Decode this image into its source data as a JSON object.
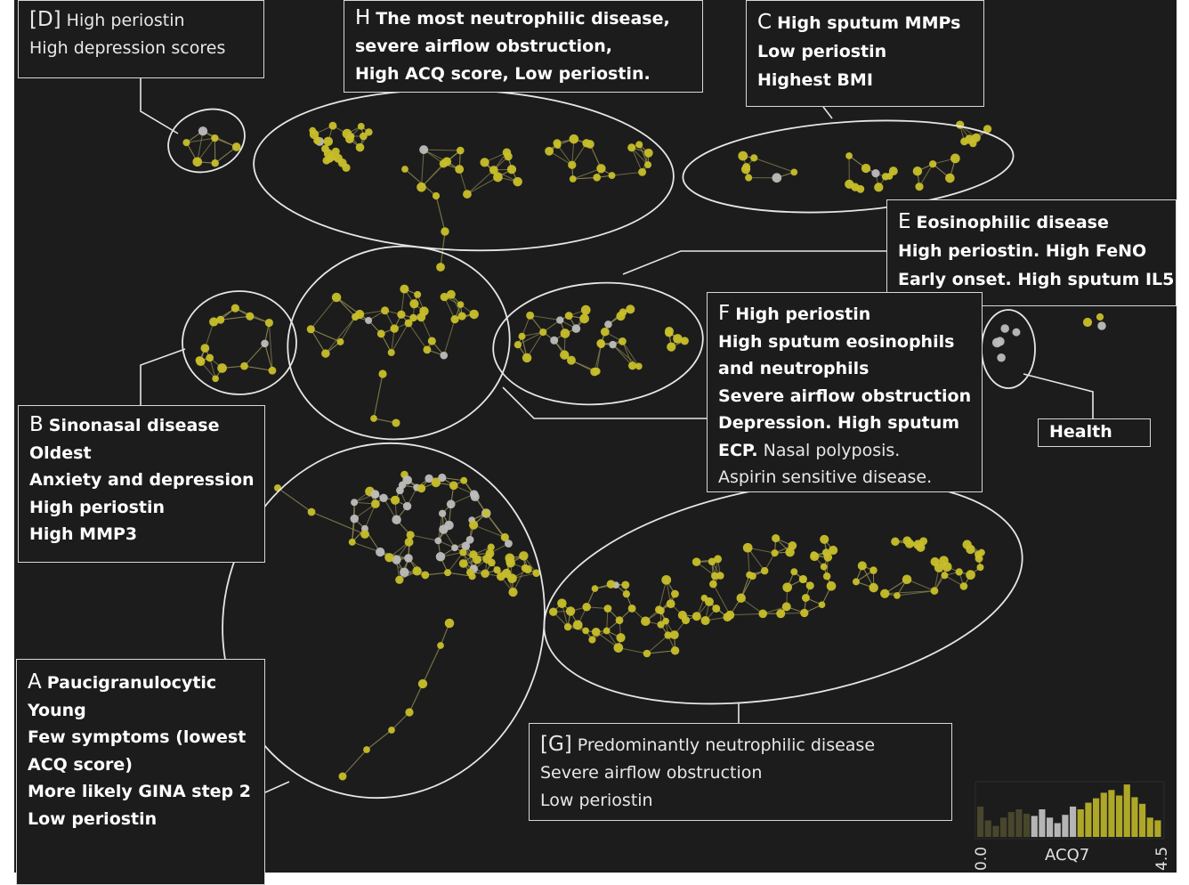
{
  "clusters": {
    "D": {
      "letter": "[D]",
      "lines": [
        "High periostin",
        "High depression scores"
      ]
    },
    "H": {
      "letter": "H",
      "lines": [
        "The most neutrophilic disease,",
        "severe airflow obstruction,",
        "High ACQ score, Low periostin."
      ]
    },
    "C": {
      "letter": "C",
      "lines": [
        "High sputum MMPs",
        "Low periostin",
        "Highest BMI"
      ]
    },
    "E": {
      "letter": "E",
      "lines": [
        "Eosinophilic disease",
        "High periostin. High FeNO",
        "Early onset. High sputum IL5"
      ]
    },
    "F": {
      "letter": "F",
      "lines": [
        "High periostin",
        "High sputum eosinophils",
        "and neutrophils",
        "Severe airflow obstruction",
        "Depression. High sputum",
        "ECP.",
        "Nasal polyposis.",
        "Aspirin sensitive disease."
      ]
    },
    "B": {
      "letter": "B",
      "lines": [
        "Sinonasal disease",
        "Oldest",
        "Anxiety and depression",
        "High periostin",
        "High MMP3"
      ]
    },
    "A": {
      "letter": "A",
      "lines": [
        "Paucigranulocytic",
        "Young",
        "Few symptoms (lowest",
        "ACQ score)",
        "More likely GINA step 2",
        "Low periostin"
      ]
    },
    "G": {
      "letter": "[G]",
      "lines": [
        "Predominantly neutrophilic disease",
        "Severe airflow obstruction",
        "Low periostin"
      ]
    },
    "Health": {
      "label": "Health"
    }
  },
  "legend": {
    "variable": "ACQ7",
    "min": "0.0",
    "max": "4.5",
    "histogram": [
      0.55,
      0.3,
      0.2,
      0.35,
      0.45,
      0.5,
      0.42,
      0.38,
      0.5,
      0.35,
      0.25,
      0.4,
      0.55,
      0.5,
      0.62,
      0.7,
      0.8,
      0.85,
      0.75,
      0.95,
      0.72,
      0.6,
      0.35,
      0.3
    ],
    "colors": {
      "low": "#6e6a3a",
      "mid": "#d0d0d0",
      "high": "#c8bf2a"
    }
  },
  "colors": {
    "background": "#1c1c1c",
    "node_yellow": "#c8bf2a",
    "node_grey": "#bdbdbd",
    "edge": "#8a8550",
    "outline": "#e6e6e6"
  }
}
